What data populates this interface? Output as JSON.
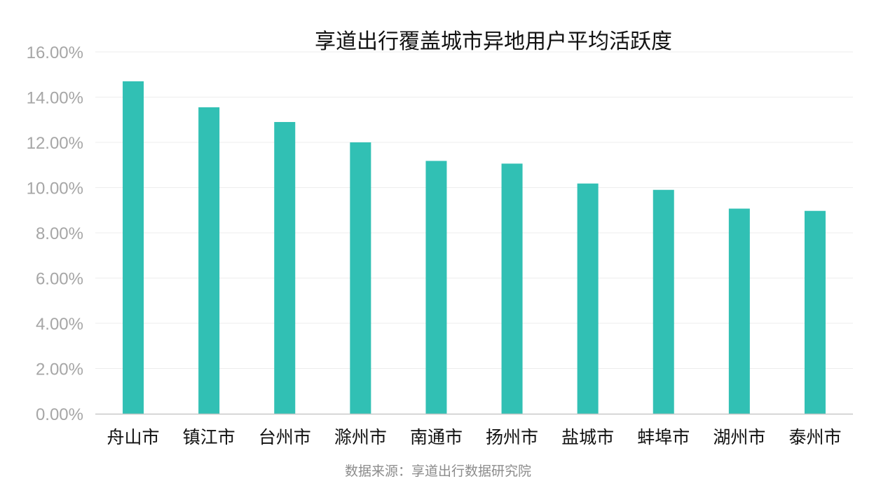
{
  "chart_data": {
    "type": "bar",
    "title": "享道出行覆盖城市异地用户平均活跃度",
    "categories": [
      "舟山市",
      "镇江市",
      "台州市",
      "滁州市",
      "南通市",
      "扬州市",
      "盐城市",
      "蚌埠市",
      "湖州市",
      "泰州市"
    ],
    "values": [
      14.7,
      13.55,
      12.9,
      12.0,
      11.18,
      11.06,
      10.18,
      9.9,
      9.07,
      8.97
    ],
    "ylim": [
      0,
      16
    ],
    "yticks": [
      "0.00%",
      "2.00%",
      "4.00%",
      "6.00%",
      "8.00%",
      "10.00%",
      "12.00%",
      "14.00%",
      "16.00%"
    ],
    "ytick_values": [
      0,
      2,
      4,
      6,
      8,
      10,
      12,
      14,
      16
    ],
    "xlabel": "",
    "ylabel": "",
    "grid": true,
    "bar_color": "#31c0b4",
    "grid_color": "#ededed",
    "axis_color": "#c8c8c8"
  },
  "footer": {
    "source": "数据来源：享道出行数据研究院"
  }
}
